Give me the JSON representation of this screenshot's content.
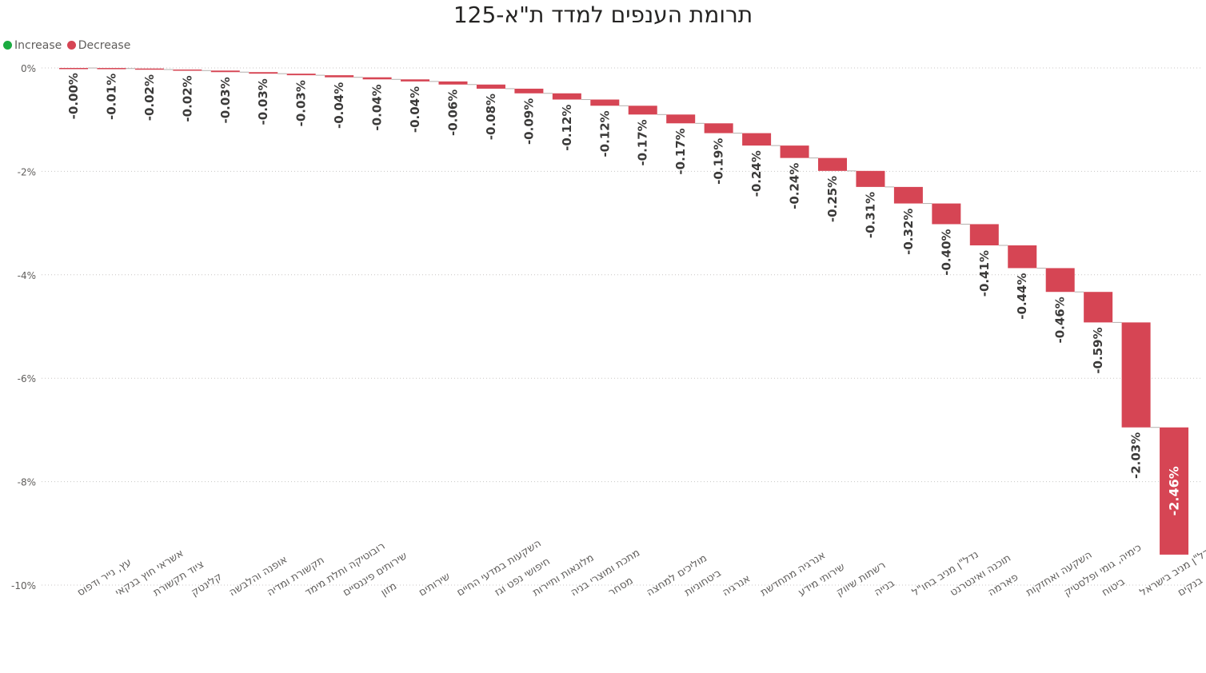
{
  "chart_data": {
    "type": "waterfall",
    "title": "תרומת הענפים למדד ת\"א-125",
    "legend": {
      "placement": "top-left",
      "items": [
        {
          "name": "Increase",
          "color": "#1aab40"
        },
        {
          "name": "Decrease",
          "color": "#d64554"
        }
      ]
    },
    "y_axis": {
      "ylim": [
        -10,
        0
      ],
      "ticks": [
        0,
        -2,
        -4,
        -6,
        -8,
        -10
      ],
      "tick_labels": [
        "0%",
        "-2%",
        "-4%",
        "-6%",
        "-8%",
        "-10%"
      ],
      "grid": true
    },
    "categories": [
      "עץ, נייר ודפוס",
      "אשראי חוץ בנקאי",
      "ציוד תקשורת",
      "קלינטק",
      "אופנה והלבשה",
      "תקשורת ומדיה",
      "רובוטיקה ותלת מימד",
      "שירותים פיננסיים",
      "מזון",
      "שירותים",
      "השקעות במדעי החיים",
      "חיפושי נפט וגז",
      "מלונאות ותיירות",
      "מתכת ומוצרי בניה",
      "מסחר",
      "מוליכים למחצה",
      "ביטחוניות",
      "אנרגיה",
      "אנרגיה מתחדשת",
      "שירותי מידע",
      "רשתות שיווק",
      "בנייה",
      "נדל\"ן מניב בחו\"ל",
      "תוכנה ואינטרנט",
      "פארמה",
      "השקעה ואחזקות",
      "כימיה, גומי ופלסטיק",
      "ביטוח",
      "נדל\"ן מניב בישראל",
      "בנקים"
    ],
    "values": [
      -0.001,
      -0.01,
      -0.02,
      -0.02,
      -0.03,
      -0.03,
      -0.03,
      -0.04,
      -0.04,
      -0.04,
      -0.06,
      -0.08,
      -0.09,
      -0.12,
      -0.12,
      -0.17,
      -0.17,
      -0.19,
      -0.24,
      -0.24,
      -0.25,
      -0.31,
      -0.32,
      -0.4,
      -0.41,
      -0.44,
      -0.46,
      -0.59,
      -2.03,
      -2.46
    ],
    "data_labels": [
      "-0.00%",
      "-0.01%",
      "-0.02%",
      "-0.02%",
      "-0.03%",
      "-0.03%",
      "-0.03%",
      "-0.04%",
      "-0.04%",
      "-0.04%",
      "-0.06%",
      "-0.08%",
      "-0.09%",
      "-0.12%",
      "-0.12%",
      "-0.17%",
      "-0.17%",
      "-0.19%",
      "-0.24%",
      "-0.24%",
      "-0.25%",
      "-0.31%",
      "-0.32%",
      "-0.40%",
      "-0.41%",
      "-0.44%",
      "-0.46%",
      "-0.59%",
      "-2.03%",
      "-2.46%"
    ],
    "colors": {
      "decrease": "#d64554",
      "increase": "#1aab40",
      "grid": "#c8c6c4",
      "axis_text": "#605e5c",
      "label_text": "#3b3a39"
    }
  }
}
